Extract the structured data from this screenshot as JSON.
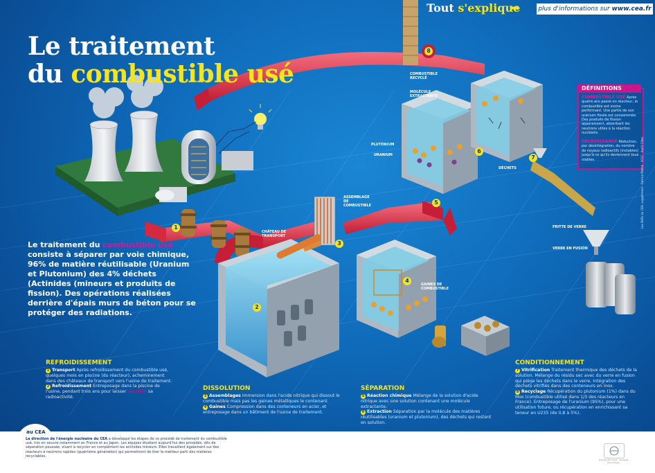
{
  "header": {
    "brand_part1": "Tout ",
    "brand_part2": "s'explique",
    "arrow": "➥",
    "more_info": "plus d'informations sur ",
    "more_info_url": "www.cea.fr"
  },
  "title": {
    "line1": "Le traitement",
    "line2_prefix": "du ",
    "line2_highlight": "combustible usé"
  },
  "intro": {
    "part1": "Le traitement du ",
    "highlight": "combustible usé",
    "part2": "consiste à séparer par voie chimique, 96% de matière réutilisable (Uranium et Plutonium) des 4% déchets (Actinides (mineurs et produits de fission). Des opérations réalisées derrière d'épais murs de béton pour se protéger des radiations."
  },
  "definitions": {
    "heading": "DÉFINITIONS",
    "term1": "COMBUSTIBLE USÉ",
    "text1": " Après quatre ans passé en réacteur, le combustible est moins performant. Une partie de son uranium fissile est consommée. Des produits de fission apparaissent, absorbant les neutrons utiles à la réaction nucléaire.",
    "term2": "DÉCROISSANCE",
    "text2": " Réduction, par désintégration, du nombre de noyaux radioactifs (instables) jusqu'à ce qu'ils deviennent tous stables."
  },
  "labels": {
    "cheminee": "CHEMINÉE",
    "combustible_recycle": "COMBUSTIBLE RECYCLÉ",
    "molecule_extractante": "MOLÉCULE EXTRACTANTE",
    "plutonium": "PLUTONIUM",
    "uranium": "URANIUM",
    "dechets": "DÉCHETS",
    "assemblage": "ASSEMBLAGE DE COMBUSTIBLE",
    "chateau": "CHÂTEAU DE TRANSPORT",
    "gaines": "GAINES DE COMBUSTIBLE",
    "fritte": "FRITTE DE VERRE",
    "verre_fusion": "VERRE EN FUSION"
  },
  "step_numbers": [
    "1",
    "2",
    "3",
    "4",
    "5",
    "6",
    "7",
    "8"
  ],
  "sections": {
    "refroidissement": {
      "title": "REFROIDISSEMENT",
      "n1": "1",
      "t1_bold": "Transport",
      "t1": " Après refroidissement du combustible usé, quelques mois en piscine (du réacteur), acheminement dans des châteaux de transport vers l'usine de traitement.",
      "n2": "2",
      "t2_bold": "Refroidissement",
      "t2a": " Entreposage dans la piscine de l'usine, pendant trois ans pour laisser ",
      "t2_highlight": "décroître",
      "t2b": " sa radioactivité."
    },
    "dissolution": {
      "title": "DISSOLUTION",
      "n3": "3",
      "t3_bold": "Assemblages",
      "t3": " Immersion dans l'acide nitrique qui dissout le combustible mais pas les gaines métalliques le contenant.",
      "n4": "4",
      "t4_bold": "Gaines",
      "t4": " Compression dans des conteneurs en acier, et entreposage dans un bâtiment de l'usine de traitement."
    },
    "separation": {
      "title": "SÉPARATION",
      "n5": "5",
      "t5_bold": "Réaction chimique",
      "t5": " Mélange de la solution d'acide nitrique avec une solution contenant une molécule extractante.",
      "n6": "6",
      "t6_bold": "Extraction",
      "t6": " Séparation par la molécule des matières réutilisables (uranium et plutonium), des déchets qui restent en solution."
    },
    "conditionnement": {
      "title": "CONDITIONNEMENT",
      "n7": "7",
      "t7_bold": "Vitrification",
      "t7": " Traitement thermique des déchets de la solution. Mélange du résidu sec avec du verre en fusion qui piège les déchets dans le verre. Intégration des déchets vitrifiés dans des conteneurs en inox.",
      "n8": "8",
      "t8_bold": "Recyclage",
      "t8": " Récupération du plutonium (1%) dans du Mox (combustible utilisé dans 1/3 des réacteurs en France). Entreposage de l'uranium (95%), pour une utilisation future, ou récupération en enrichissant sa teneur en U235 (de 0,8 à 5%)."
    }
  },
  "footer": {
    "tab": "au CEA",
    "text_bold": "La direction de l'énergie nucléaire du CEA",
    "text": " a développé les étapes de ce procédé de traitement du combustible usé, mis en oeuvre notamment en France et au Japon. Les équipes étudient aujourd'hui des procédés, dits de séparation poussée, visant à recycler en complément les actinides mineurs. Elles travaillent également sur des réacteurs à neutrons rapides (quatrième génération) qui permettront de tirer le meilleur parti des matières recyclables.",
    "logo": "cea",
    "logo_caption": "énergie atomique · énergies alternatives"
  },
  "credit": "Les Défis du CEA, supplément · Fabrice Mathé · 2012 · Audit Gilles",
  "colors": {
    "background": "#0f6cbb",
    "accent_yellow": "#f6e51e",
    "accent_magenta": "#c9168a",
    "pipe_red": "#e5394a"
  }
}
